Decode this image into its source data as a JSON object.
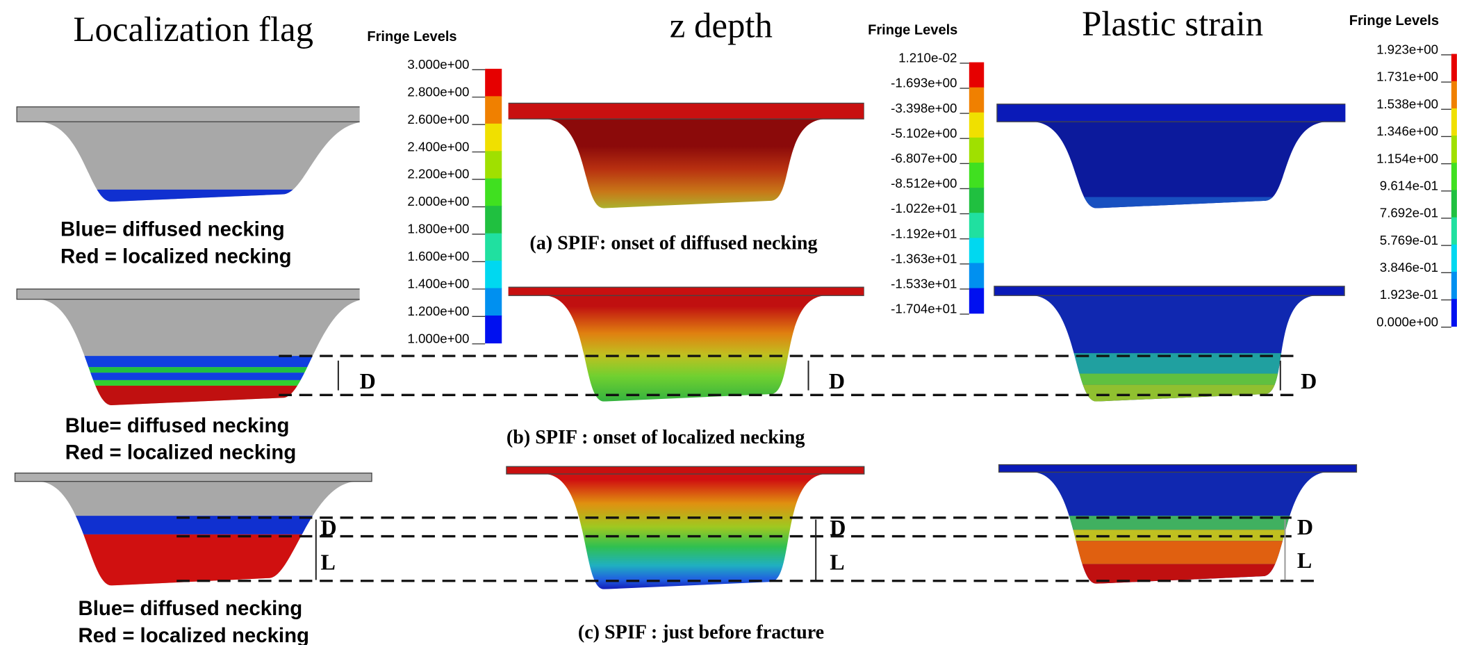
{
  "columns": [
    {
      "title": "Localization flag"
    },
    {
      "title": "z depth"
    },
    {
      "title": "Plastic strain"
    }
  ],
  "legends": [
    {
      "title": "Fringe Levels",
      "levels": [
        "3.000e+00",
        "2.800e+00",
        "2.600e+00",
        "2.400e+00",
        "2.200e+00",
        "2.000e+00",
        "1.800e+00",
        "1.600e+00",
        "1.400e+00",
        "1.200e+00",
        "1.000e+00"
      ]
    },
    {
      "title": "Fringe Levels",
      "levels": [
        "1.210e-02",
        "-1.693e+00",
        "-3.398e+00",
        "-5.102e+00",
        "-6.807e+00",
        "-8.512e+00",
        "-1.022e+01",
        "-1.192e+01",
        "-1.363e+01",
        "-1.533e+01",
        "-1.704e+01"
      ]
    },
    {
      "title": "Fringe Levels",
      "levels": [
        "1.923e+00",
        "1.731e+00",
        "1.538e+00",
        "1.346e+00",
        "1.154e+00",
        "9.614e-01",
        "7.692e-01",
        "5.769e-01",
        "3.846e-01",
        "1.923e-01",
        "0.000e+00"
      ]
    }
  ],
  "notes": [
    [
      "Blue= diffused necking",
      "Red = localized necking"
    ],
    [
      "Blue= diffused necking",
      "Red = localized necking"
    ],
    [
      "Blue= diffused necking",
      "Red = localized necking"
    ]
  ],
  "captions": [
    "(a) SPIF:  onset of diffused necking",
    "(b) SPIF : onset of localized necking",
    "(c) SPIF : just before fracture"
  ],
  "markers": {
    "row_b": [
      "D",
      "D",
      "D"
    ],
    "row_c": [
      {
        "d": "D",
        "l": "L"
      },
      {
        "d": "D",
        "l": "L"
      },
      {
        "d": "D",
        "l": "L"
      }
    ]
  }
}
